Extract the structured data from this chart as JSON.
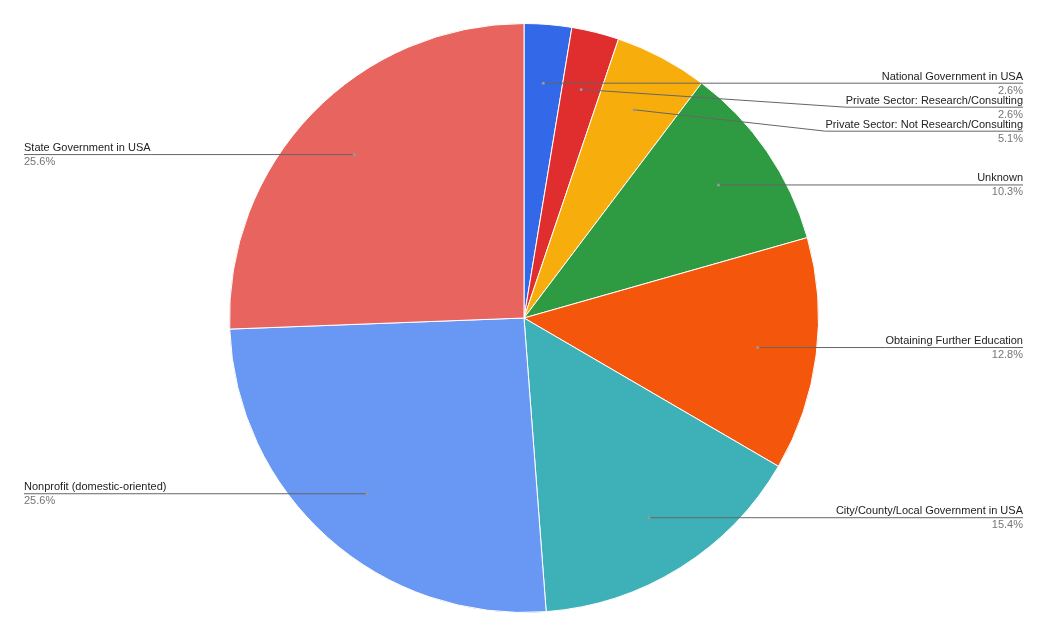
{
  "chart_data": {
    "type": "pie",
    "categories": [
      "National Government in USA",
      "Private Sector: Research/Consulting",
      "Private Sector: Not Research/Consulting",
      "Unknown",
      "Obtaining Further Education",
      "City/County/Local Government in USA",
      "Nonprofit (domestic-oriented)",
      "State Government in USA"
    ],
    "values": [
      2.6,
      2.6,
      5.1,
      10.3,
      12.8,
      15.4,
      25.6,
      25.6
    ],
    "value_labels": [
      "2.6%",
      "2.6%",
      "5.1%",
      "10.3%",
      "12.8%",
      "15.4%",
      "25.6%",
      "25.6%"
    ],
    "colors": [
      "#3369e8",
      "#e02d2d",
      "#f7ae0d",
      "#2e9b43",
      "#f4560b",
      "#3db0b8",
      "#6897f4",
      "#e8655f"
    ],
    "legend": false
  }
}
